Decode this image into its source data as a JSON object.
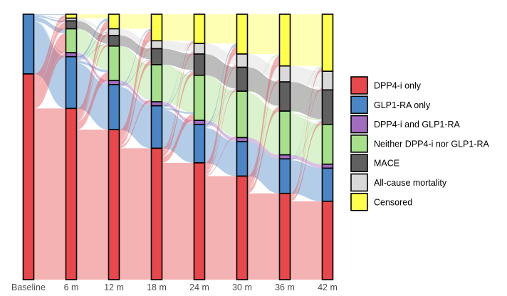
{
  "chart_data": {
    "type": "alluvial",
    "title": "",
    "xlabel": "",
    "ylabel": "",
    "categories": [
      "Baseline",
      "6 m",
      "12 m",
      "18 m",
      "24 m",
      "30 m",
      "36 m",
      "42 m"
    ],
    "states": [
      {
        "name": "DPP4-i only",
        "color": "#e8474b"
      },
      {
        "name": "GLP1-RA only",
        "color": "#4a86c5"
      },
      {
        "name": "DPP4-i and GLP1-RA",
        "color": "#a26dbf"
      },
      {
        "name": "Neither DPP4-i nor GLP1-RA",
        "color": "#a6e08a"
      },
      {
        "name": "MACE",
        "color": "#606060"
      },
      {
        "name": "All-cause mortality",
        "color": "#d9d9d9"
      },
      {
        "name": "Censored",
        "color": "#ffff4d"
      }
    ],
    "series": [
      {
        "name": "DPP4-i only",
        "values": [
          0.775,
          0.645,
          0.565,
          0.495,
          0.44,
          0.39,
          0.325,
          0.295
        ]
      },
      {
        "name": "GLP1-RA only",
        "values": [
          0.225,
          0.195,
          0.17,
          0.16,
          0.145,
          0.13,
          0.13,
          0.125
        ]
      },
      {
        "name": "DPP4-i and GLP1-RA",
        "values": [
          0,
          0.015,
          0.015,
          0.015,
          0.015,
          0.015,
          0.015,
          0.015
        ]
      },
      {
        "name": "Neither DPP4-i nor GLP1-RA",
        "values": [
          0,
          0.09,
          0.13,
          0.14,
          0.17,
          0.175,
          0.165,
          0.15
        ]
      },
      {
        "name": "MACE",
        "values": [
          0,
          0.03,
          0.04,
          0.06,
          0.08,
          0.09,
          0.11,
          0.13
        ]
      },
      {
        "name": "All-cause mortality",
        "values": [
          0,
          0.01,
          0.025,
          0.03,
          0.04,
          0.05,
          0.06,
          0.07
        ]
      },
      {
        "name": "Censored",
        "values": [
          0,
          0.015,
          0.055,
          0.1,
          0.11,
          0.15,
          0.195,
          0.215
        ]
      }
    ],
    "legend": "right"
  }
}
